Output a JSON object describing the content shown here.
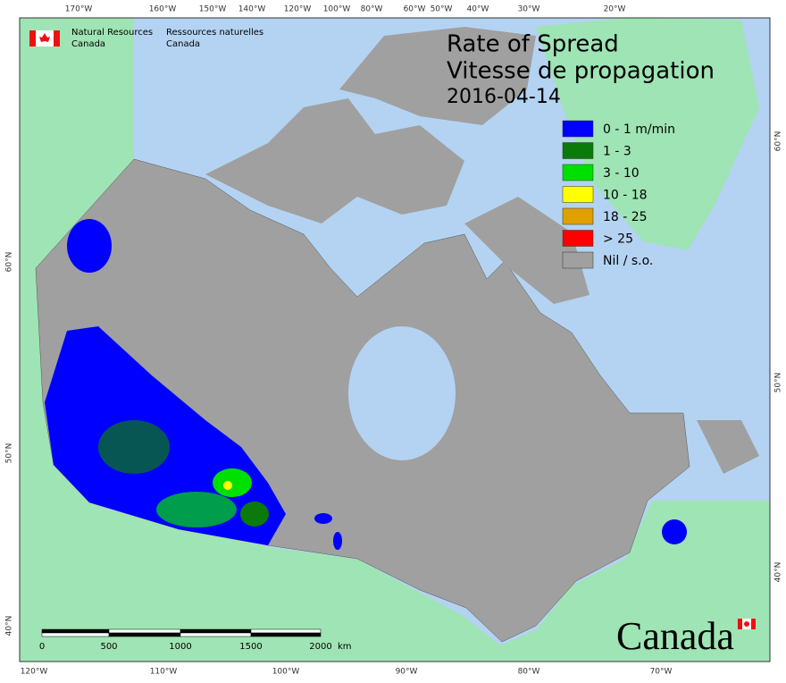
{
  "header": {
    "title": "Rate of Spread",
    "subtitle": "Vitesse de propagation",
    "date": "2016-04-14"
  },
  "agency": {
    "en": [
      "Natural Resources",
      "Canada"
    ],
    "fr": [
      "Ressources naturelles",
      "Canada"
    ]
  },
  "legend": [
    {
      "label": "0 - 1 m/min",
      "color": "#0000ff"
    },
    {
      "label": "1 - 3",
      "color": "#0a7a0a"
    },
    {
      "label": "3 - 10",
      "color": "#00e000"
    },
    {
      "label": "10 - 18",
      "color": "#ffff00"
    },
    {
      "label": "18 - 25",
      "color": "#e0a000"
    },
    {
      "label": "> 25",
      "color": "#ff0000"
    },
    {
      "label": "Nil / s.o.",
      "color": "#a0a0a0"
    }
  ],
  "graticule": {
    "top": [
      "170°W",
      "160°W",
      "150°W",
      "140°W",
      "120°W",
      "100°W",
      "80°W",
      "60°W",
      "50°W",
      "40°W",
      "30°W",
      "20°W"
    ],
    "bottom": [
      "120°W",
      "110°W",
      "100°W",
      "90°W",
      "80°W",
      "70°W"
    ],
    "left": [
      "60°N",
      "50°N",
      "40°N"
    ],
    "right": [
      "60°N",
      "50°N",
      "40°N"
    ]
  },
  "scale_bar": {
    "labels": [
      "0",
      "500",
      "1000",
      "1500",
      "2000"
    ],
    "unit": "km"
  },
  "wordmark": "Canada"
}
